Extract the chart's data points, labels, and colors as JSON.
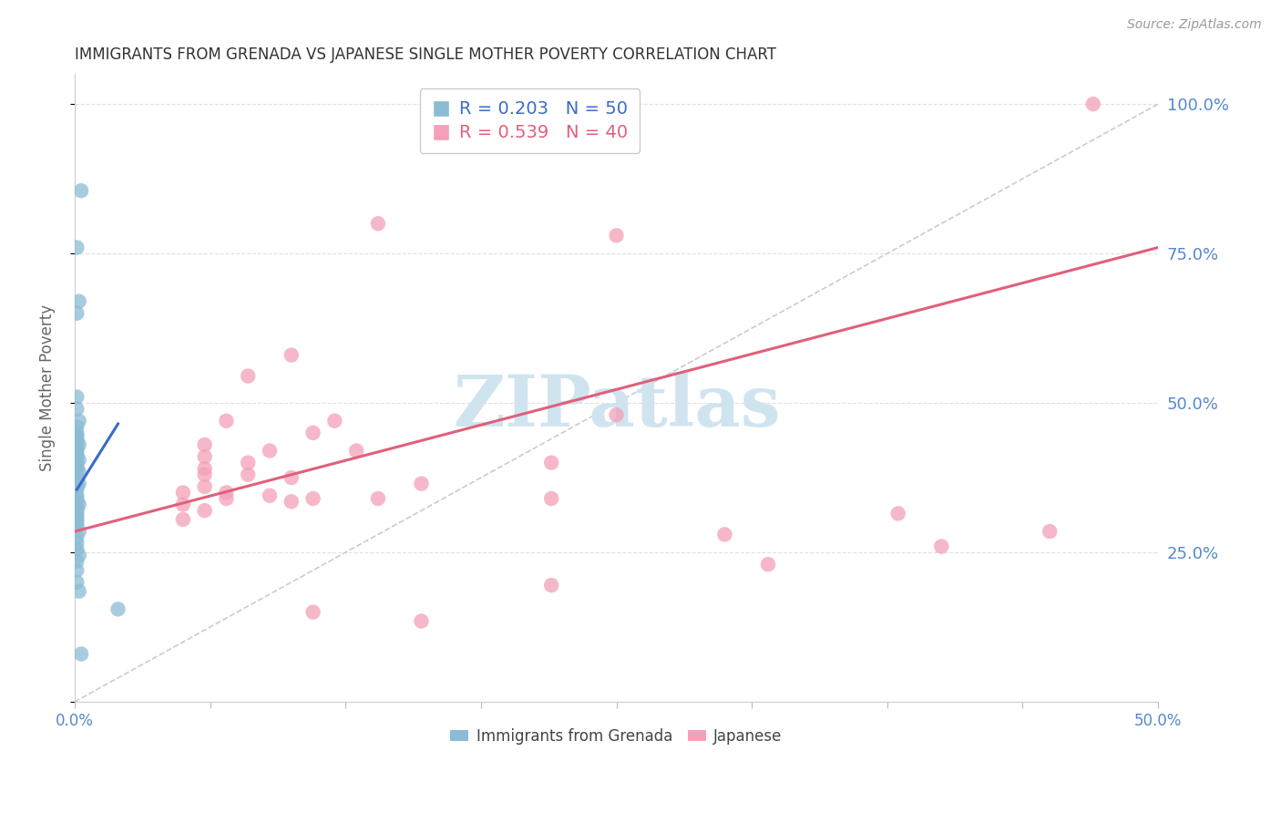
{
  "title": "IMMIGRANTS FROM GRENADA VS JAPANESE SINGLE MOTHER POVERTY CORRELATION CHART",
  "source": "Source: ZipAtlas.com",
  "ylabel": "Single Mother Poverty",
  "x_min": 0.0,
  "x_max": 0.5,
  "y_min": 0.0,
  "y_max": 1.05,
  "yticks": [
    0.0,
    0.25,
    0.5,
    0.75,
    1.0
  ],
  "xticks": [
    0.0,
    0.0625,
    0.125,
    0.1875,
    0.25,
    0.3125,
    0.375,
    0.4375,
    0.5
  ],
  "legend_entries": [
    {
      "label": "R = 0.203   N = 50",
      "color": "#a8c4e0"
    },
    {
      "label": "R = 0.539   N = 40",
      "color": "#f4a0b0"
    }
  ],
  "legend_labels_bottom": [
    "Immigrants from Grenada",
    "Japanese"
  ],
  "watermark": "ZIPatlas",
  "blue_scatter": [
    [
      0.003,
      0.855
    ],
    [
      0.001,
      0.76
    ],
    [
      0.002,
      0.67
    ],
    [
      0.001,
      0.65
    ],
    [
      0.001,
      0.51
    ],
    [
      0.001,
      0.49
    ],
    [
      0.002,
      0.47
    ],
    [
      0.001,
      0.46
    ],
    [
      0.001,
      0.45
    ],
    [
      0.001,
      0.445
    ],
    [
      0.001,
      0.44
    ],
    [
      0.001,
      0.435
    ],
    [
      0.002,
      0.43
    ],
    [
      0.001,
      0.425
    ],
    [
      0.001,
      0.42
    ],
    [
      0.001,
      0.415
    ],
    [
      0.001,
      0.41
    ],
    [
      0.002,
      0.405
    ],
    [
      0.001,
      0.4
    ],
    [
      0.001,
      0.395
    ],
    [
      0.001,
      0.39
    ],
    [
      0.002,
      0.385
    ],
    [
      0.001,
      0.38
    ],
    [
      0.001,
      0.375
    ],
    [
      0.001,
      0.37
    ],
    [
      0.002,
      0.365
    ],
    [
      0.001,
      0.36
    ],
    [
      0.001,
      0.355
    ],
    [
      0.001,
      0.345
    ],
    [
      0.001,
      0.34
    ],
    [
      0.001,
      0.335
    ],
    [
      0.002,
      0.33
    ],
    [
      0.001,
      0.325
    ],
    [
      0.001,
      0.32
    ],
    [
      0.001,
      0.315
    ],
    [
      0.001,
      0.31
    ],
    [
      0.001,
      0.305
    ],
    [
      0.001,
      0.3
    ],
    [
      0.001,
      0.295
    ],
    [
      0.002,
      0.285
    ],
    [
      0.001,
      0.275
    ],
    [
      0.001,
      0.265
    ],
    [
      0.001,
      0.255
    ],
    [
      0.002,
      0.245
    ],
    [
      0.001,
      0.235
    ],
    [
      0.001,
      0.22
    ],
    [
      0.001,
      0.2
    ],
    [
      0.002,
      0.185
    ],
    [
      0.02,
      0.155
    ],
    [
      0.003,
      0.08
    ]
  ],
  "pink_scatter": [
    [
      0.47,
      1.0
    ],
    [
      0.14,
      0.8
    ],
    [
      0.25,
      0.78
    ],
    [
      0.1,
      0.58
    ],
    [
      0.25,
      0.48
    ],
    [
      0.07,
      0.47
    ],
    [
      0.11,
      0.45
    ],
    [
      0.06,
      0.43
    ],
    [
      0.09,
      0.42
    ],
    [
      0.13,
      0.42
    ],
    [
      0.06,
      0.41
    ],
    [
      0.08,
      0.4
    ],
    [
      0.22,
      0.4
    ],
    [
      0.06,
      0.39
    ],
    [
      0.08,
      0.38
    ],
    [
      0.1,
      0.375
    ],
    [
      0.16,
      0.365
    ],
    [
      0.06,
      0.36
    ],
    [
      0.07,
      0.35
    ],
    [
      0.09,
      0.345
    ],
    [
      0.11,
      0.34
    ],
    [
      0.14,
      0.34
    ],
    [
      0.06,
      0.38
    ],
    [
      0.05,
      0.35
    ],
    [
      0.07,
      0.34
    ],
    [
      0.22,
      0.34
    ],
    [
      0.05,
      0.33
    ],
    [
      0.06,
      0.32
    ],
    [
      0.38,
      0.315
    ],
    [
      0.05,
      0.305
    ],
    [
      0.3,
      0.28
    ],
    [
      0.45,
      0.285
    ],
    [
      0.4,
      0.26
    ],
    [
      0.22,
      0.195
    ],
    [
      0.11,
      0.15
    ],
    [
      0.16,
      0.135
    ],
    [
      0.32,
      0.23
    ],
    [
      0.08,
      0.545
    ],
    [
      0.12,
      0.47
    ],
    [
      0.1,
      0.335
    ]
  ],
  "blue_trendline": [
    [
      0.001,
      0.355
    ],
    [
      0.02,
      0.465
    ]
  ],
  "pink_trendline": [
    [
      0.0,
      0.285
    ],
    [
      0.5,
      0.76
    ]
  ],
  "diagonal_line": [
    [
      0.0,
      0.0
    ],
    [
      0.5,
      1.0
    ]
  ],
  "scatter_color_blue": "#8bbcd4",
  "scatter_color_pink": "#f4a0b8",
  "trendline_color_blue": "#3a6bc8",
  "trendline_color_pink": "#e0607a",
  "diagonal_color": "#cccccc",
  "grid_color": "#e0e0e0",
  "title_color": "#333333",
  "axis_label_color": "#666666",
  "right_axis_color": "#5588cc",
  "bottom_axis_color": "#5588cc",
  "watermark_color": "#d0e4f0",
  "background_color": "#ffffff"
}
